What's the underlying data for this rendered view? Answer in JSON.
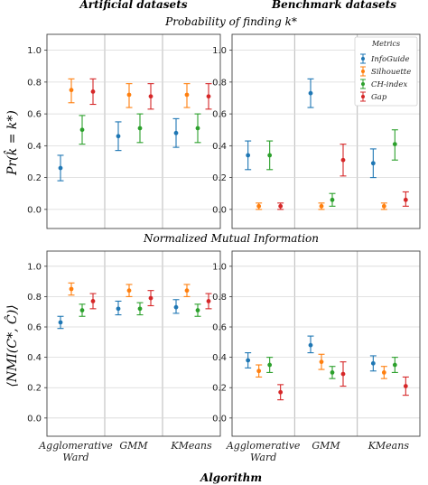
{
  "colors": {
    "InfoGuide": "#1f77b4",
    "Silhouette": "#ff7f0e",
    "CH-index": "#2ca02c",
    "Gap": "#d62728"
  },
  "figure": {
    "col_titles": [
      "Artificial datasets",
      "Benchmark datasets"
    ],
    "row_titles": [
      "Probability of finding k*",
      "Normalized Mutual Information"
    ],
    "row_ylabels": [
      "Pr(k̂ = k*)",
      "⟨NMI(C*, Ĉ)⟩"
    ],
    "xlabel": "Algorithm",
    "legend_title": "Metrics"
  },
  "chart_data": [
    {
      "type": "scatter",
      "panel": "row1-left",
      "categories": [
        "Agglomerative Ward",
        "GMM",
        "KMeans"
      ],
      "yticks": [
        "0.0",
        "0.2",
        "0.4",
        "0.6",
        "0.8",
        "1.0"
      ],
      "ylim": [
        -0.12,
        1.1
      ],
      "grid": true,
      "series": [
        {
          "name": "InfoGuide",
          "values": [
            0.26,
            0.46,
            0.48
          ],
          "err_low": [
            0.18,
            0.37,
            0.39
          ],
          "err_high": [
            0.34,
            0.55,
            0.57
          ]
        },
        {
          "name": "Silhouette",
          "values": [
            0.75,
            0.72,
            0.72
          ],
          "err_low": [
            0.67,
            0.64,
            0.64
          ],
          "err_high": [
            0.82,
            0.79,
            0.79
          ]
        },
        {
          "name": "CH-index",
          "values": [
            0.5,
            0.51,
            0.51
          ],
          "err_low": [
            0.41,
            0.42,
            0.42
          ],
          "err_high": [
            0.59,
            0.6,
            0.6
          ]
        },
        {
          "name": "Gap",
          "values": [
            0.74,
            0.71,
            0.71
          ],
          "err_low": [
            0.66,
            0.63,
            0.63
          ],
          "err_high": [
            0.82,
            0.79,
            0.79
          ]
        }
      ]
    },
    {
      "type": "scatter",
      "panel": "row1-right",
      "categories": [
        "Agglomerative Ward",
        "GMM",
        "KMeans"
      ],
      "yticks": [
        "0.0",
        "0.2",
        "0.4",
        "0.6",
        "0.8",
        "1.0"
      ],
      "ylim": [
        -0.12,
        1.1
      ],
      "grid": true,
      "legend": "top-right",
      "series": [
        {
          "name": "InfoGuide",
          "values": [
            0.34,
            0.73,
            0.29
          ],
          "err_low": [
            0.25,
            0.64,
            0.2
          ],
          "err_high": [
            0.43,
            0.82,
            0.38
          ]
        },
        {
          "name": "Silhouette",
          "values": [
            0.02,
            0.02,
            0.02
          ],
          "err_low": [
            0.0,
            0.0,
            0.0
          ],
          "err_high": [
            0.04,
            0.04,
            0.04
          ]
        },
        {
          "name": "CH-index",
          "values": [
            0.34,
            0.06,
            0.41
          ],
          "err_low": [
            0.25,
            0.02,
            0.31
          ],
          "err_high": [
            0.43,
            0.1,
            0.5
          ]
        },
        {
          "name": "Gap",
          "values": [
            0.02,
            0.31,
            0.06
          ],
          "err_low": [
            0.0,
            0.21,
            0.02
          ],
          "err_high": [
            0.04,
            0.41,
            0.11
          ]
        }
      ]
    },
    {
      "type": "scatter",
      "panel": "row2-left",
      "categories": [
        "Agglomerative Ward",
        "GMM",
        "KMeans"
      ],
      "yticks": [
        "0.0",
        "0.2",
        "0.4",
        "0.6",
        "0.8",
        "1.0"
      ],
      "ylim": [
        -0.12,
        1.1
      ],
      "grid": true,
      "series": [
        {
          "name": "InfoGuide",
          "values": [
            0.63,
            0.72,
            0.73
          ],
          "err_low": [
            0.59,
            0.68,
            0.69
          ],
          "err_high": [
            0.67,
            0.77,
            0.78
          ]
        },
        {
          "name": "Silhouette",
          "values": [
            0.85,
            0.84,
            0.84
          ],
          "err_low": [
            0.81,
            0.8,
            0.8
          ],
          "err_high": [
            0.89,
            0.88,
            0.88
          ]
        },
        {
          "name": "CH-index",
          "values": [
            0.71,
            0.72,
            0.71
          ],
          "err_low": [
            0.67,
            0.68,
            0.67
          ],
          "err_high": [
            0.75,
            0.76,
            0.75
          ]
        },
        {
          "name": "Gap",
          "values": [
            0.77,
            0.79,
            0.77
          ],
          "err_low": [
            0.72,
            0.74,
            0.72
          ],
          "err_high": [
            0.82,
            0.84,
            0.82
          ]
        }
      ]
    },
    {
      "type": "scatter",
      "panel": "row2-right",
      "categories": [
        "Agglomerative Ward",
        "GMM",
        "KMeans"
      ],
      "yticks": [
        "0.0",
        "0.2",
        "0.4",
        "0.6",
        "0.8",
        "1.0"
      ],
      "ylim": [
        -0.12,
        1.1
      ],
      "grid": true,
      "series": [
        {
          "name": "InfoGuide",
          "values": [
            0.38,
            0.48,
            0.36
          ],
          "err_low": [
            0.33,
            0.43,
            0.31
          ],
          "err_high": [
            0.43,
            0.54,
            0.41
          ]
        },
        {
          "name": "Silhouette",
          "values": [
            0.31,
            0.37,
            0.3
          ],
          "err_low": [
            0.27,
            0.32,
            0.26
          ],
          "err_high": [
            0.35,
            0.42,
            0.34
          ]
        },
        {
          "name": "CH-index",
          "values": [
            0.35,
            0.3,
            0.35
          ],
          "err_low": [
            0.3,
            0.26,
            0.3
          ],
          "err_high": [
            0.4,
            0.34,
            0.4
          ]
        },
        {
          "name": "Gap",
          "values": [
            0.17,
            0.29,
            0.21
          ],
          "err_low": [
            0.12,
            0.21,
            0.15
          ],
          "err_high": [
            0.22,
            0.37,
            0.27
          ]
        }
      ]
    }
  ]
}
